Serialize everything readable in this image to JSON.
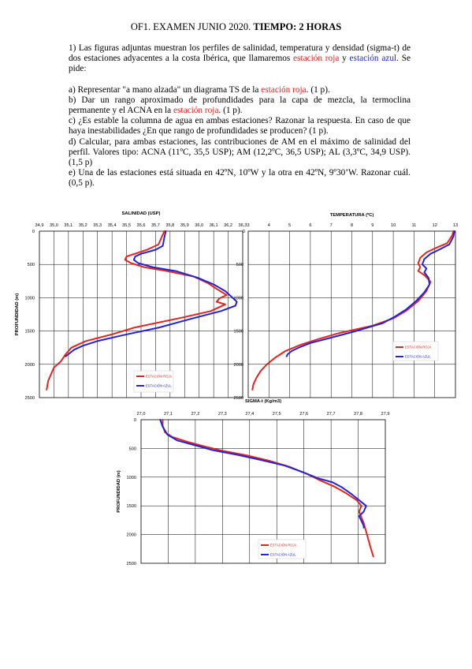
{
  "header": {
    "title_plain": "OF1. EXAMEN JUNIO 2020. ",
    "title_bold": "TIEMPO: 2 HORAS"
  },
  "problem": {
    "intro_a": "1) Las figuras adjuntas muestran los perfiles de salinidad, temperatura y densidad (sigma-t) de dos estaciones adyacentes a la costa Ibérica, que llamaremos ",
    "intro_red": "estación roja",
    "intro_b": " y ",
    "intro_blue": "estación azul",
    "intro_c": ". Se pide:",
    "a_pre": "a) Representar \"a mano alzada\" un diagrama TS de la ",
    "a_red": "estación roja",
    "a_post": ". (1 p).",
    "b_pre": "b) Dar un rango aproximado de profundidades para la capa de mezcla, la termoclina permanente y el ACNA en la ",
    "b_red": "estación roja",
    "b_post": ". (1 p).",
    "c": "c) ¿Es estable la columna de agua en ambas estaciones? Razonar la respuesta. En caso de que haya inestabilidades ¿En que rango de profundidades se producen? (1 p).",
    "d": "d) Calcular, para ambas estaciones, las contribuciones de AM en el máximo de salinidad del perfil. Valores tipo: ACNA (11ºC, 35,5 USP); AM (12,2ºC, 36,5 USP); AL (3,3ºC, 34,9 USP). (1,5 p)",
    "e": "e) Una de las estaciones está situada en 42ºN, 10ºW y la otra en 42ºN, 9º30’W. Razonar cuál. (0,5 p)."
  },
  "colors": {
    "red_station": "#e8231f",
    "blue_station": "#2222dd",
    "grid": "#000000"
  },
  "chart_data": [
    {
      "type": "line",
      "title": "SALINIDAD (USP)",
      "ylabel": "PROFUNDIDAD (m)",
      "x_ticks": [
        "34,9",
        "35,0",
        "35,1",
        "35,2",
        "35,3",
        "35,4",
        "35,5",
        "35,6",
        "35,7",
        "35,8",
        "35,9",
        "36,0",
        "36,1",
        "36,2",
        "36,3"
      ],
      "xlim": [
        34.9,
        36.3
      ],
      "y_ticks": [
        "0",
        "500",
        "1000",
        "1500",
        "2000",
        "2500"
      ],
      "ylim": [
        0,
        2500
      ],
      "legend": {
        "position": "bottom-center",
        "entries": [
          "ESTACIÓN ROJA",
          "ESTACIÓN AZUL"
        ]
      },
      "series": [
        {
          "name": "ESTACIÓN ROJA",
          "color": "#e8231f",
          "points": [
            [
              35.76,
              0
            ],
            [
              35.74,
              100
            ],
            [
              35.72,
              200
            ],
            [
              35.64,
              280
            ],
            [
              35.57,
              330
            ],
            [
              35.5,
              380
            ],
            [
              35.49,
              430
            ],
            [
              35.53,
              480
            ],
            [
              35.62,
              540
            ],
            [
              35.78,
              600
            ],
            [
              35.96,
              680
            ],
            [
              36.06,
              780
            ],
            [
              36.13,
              880
            ],
            [
              36.19,
              960
            ],
            [
              36.14,
              1010
            ],
            [
              36.12,
              1060
            ],
            [
              36.18,
              1100
            ],
            [
              36.08,
              1200
            ],
            [
              35.88,
              1300
            ],
            [
              35.55,
              1450
            ],
            [
              35.4,
              1550
            ],
            [
              35.22,
              1650
            ],
            [
              35.12,
              1750
            ],
            [
              35.08,
              1850
            ],
            [
              35.05,
              1950
            ],
            [
              35.0,
              2050
            ],
            [
              34.98,
              2150
            ],
            [
              34.96,
              2250
            ],
            [
              34.95,
              2380
            ]
          ]
        },
        {
          "name": "ESTACIÓN AZUL",
          "color": "#2222dd",
          "points": [
            [
              35.77,
              0
            ],
            [
              35.76,
              100
            ],
            [
              35.75,
              220
            ],
            [
              35.7,
              280
            ],
            [
              35.6,
              340
            ],
            [
              35.56,
              380
            ],
            [
              35.55,
              430
            ],
            [
              35.58,
              480
            ],
            [
              35.68,
              540
            ],
            [
              35.84,
              600
            ],
            [
              35.99,
              700
            ],
            [
              36.1,
              800
            ],
            [
              36.18,
              900
            ],
            [
              36.23,
              1000
            ],
            [
              36.26,
              1060
            ],
            [
              36.25,
              1120
            ],
            [
              36.15,
              1200
            ],
            [
              35.92,
              1330
            ],
            [
              35.72,
              1450
            ],
            [
              35.48,
              1560
            ],
            [
              35.3,
              1650
            ],
            [
              35.2,
              1720
            ],
            [
              35.14,
              1780
            ],
            [
              35.11,
              1830
            ],
            [
              35.08,
              1880
            ]
          ]
        }
      ]
    },
    {
      "type": "line",
      "title": "TEMPERATURA (ºC)",
      "x_ticks": [
        "3",
        "4",
        "5",
        "6",
        "7",
        "8",
        "9",
        "10",
        "11",
        "12",
        "13"
      ],
      "xlim": [
        3,
        13
      ],
      "y_ticks": [
        "0",
        "500",
        "1000",
        "1500",
        "2000",
        "2500"
      ],
      "ylim": [
        0,
        2500
      ],
      "legend": {
        "position": "bottom-right",
        "entries": [
          "ESTACIÓN ROJA",
          "ESTACIÓN AZUL"
        ]
      },
      "series": [
        {
          "name": "ESTACIÓN ROJA",
          "color": "#e8231f",
          "points": [
            [
              12.9,
              0
            ],
            [
              12.85,
              60
            ],
            [
              12.6,
              180
            ],
            [
              12.0,
              260
            ],
            [
              11.6,
              320
            ],
            [
              11.3,
              400
            ],
            [
              11.2,
              480
            ],
            [
              11.3,
              540
            ],
            [
              11.2,
              600
            ],
            [
              11.5,
              660
            ],
            [
              11.8,
              760
            ],
            [
              11.6,
              900
            ],
            [
              11.2,
              1050
            ],
            [
              10.6,
              1200
            ],
            [
              10.0,
              1310
            ],
            [
              9.0,
              1420
            ],
            [
              7.4,
              1530
            ],
            [
              6.4,
              1620
            ],
            [
              5.5,
              1710
            ],
            [
              4.8,
              1800
            ],
            [
              4.3,
              1900
            ],
            [
              3.9,
              2000
            ],
            [
              3.6,
              2100
            ],
            [
              3.4,
              2200
            ],
            [
              3.25,
              2300
            ],
            [
              3.2,
              2380
            ]
          ]
        },
        {
          "name": "ESTACIÓN AZUL",
          "color": "#2222dd",
          "points": [
            [
              12.95,
              0
            ],
            [
              12.9,
              80
            ],
            [
              12.7,
              200
            ],
            [
              12.2,
              280
            ],
            [
              11.8,
              340
            ],
            [
              11.5,
              420
            ],
            [
              11.4,
              500
            ],
            [
              11.6,
              560
            ],
            [
              11.5,
              620
            ],
            [
              11.7,
              700
            ],
            [
              11.75,
              800
            ],
            [
              11.5,
              920
            ],
            [
              11.1,
              1050
            ],
            [
              10.6,
              1180
            ],
            [
              10.1,
              1280
            ],
            [
              9.5,
              1380
            ],
            [
              8.2,
              1500
            ],
            [
              7.0,
              1600
            ],
            [
              6.0,
              1680
            ],
            [
              5.5,
              1740
            ],
            [
              5.1,
              1800
            ],
            [
              4.9,
              1850
            ],
            [
              4.85,
              1880
            ]
          ]
        }
      ]
    },
    {
      "type": "line",
      "title": "SIGMA-t (Kg/m3)",
      "ylabel": "PROFUNDIDAD (m)",
      "x_ticks": [
        "27,0",
        "27,1",
        "27,2",
        "27,3",
        "27,4",
        "27,5",
        "27,6",
        "27,7",
        "27,8",
        "27,9"
      ],
      "xlim": [
        26.94,
        27.96
      ],
      "y_ticks": [
        "0",
        "500",
        "1000",
        "1500",
        "2000",
        "2500"
      ],
      "ylim": [
        0,
        2500
      ],
      "legend": {
        "position": "bottom-left",
        "entries": [
          "ESTACIÓN ROJA",
          "ESTACIÓN AZUL"
        ]
      },
      "series": [
        {
          "name": "ESTACIÓN ROJA",
          "color": "#e8231f",
          "points": [
            [
              27.03,
              0
            ],
            [
              27.03,
              100
            ],
            [
              27.04,
              220
            ],
            [
              27.07,
              300
            ],
            [
              27.13,
              380
            ],
            [
              27.2,
              460
            ],
            [
              27.28,
              540
            ],
            [
              27.38,
              620
            ],
            [
              27.48,
              720
            ],
            [
              27.56,
              820
            ],
            [
              27.63,
              940
            ],
            [
              27.69,
              1060
            ],
            [
              27.75,
              1170
            ],
            [
              27.8,
              1290
            ],
            [
              27.84,
              1400
            ],
            [
              27.86,
              1500
            ],
            [
              27.85,
              1600
            ],
            [
              27.86,
              1700
            ],
            [
              27.87,
              1800
            ],
            [
              27.88,
              1950
            ],
            [
              27.89,
              2100
            ],
            [
              27.9,
              2250
            ],
            [
              27.91,
              2380
            ]
          ]
        },
        {
          "name": "ESTACIÓN AZUL",
          "color": "#2222dd",
          "points": [
            [
              27.02,
              0
            ],
            [
              27.03,
              120
            ],
            [
              27.05,
              260
            ],
            [
              27.09,
              360
            ],
            [
              27.16,
              440
            ],
            [
              27.24,
              530
            ],
            [
              27.34,
              610
            ],
            [
              27.44,
              700
            ],
            [
              27.54,
              800
            ],
            [
              27.62,
              920
            ],
            [
              27.68,
              1020
            ],
            [
              27.74,
              1090
            ],
            [
              27.78,
              1180
            ],
            [
              27.82,
              1300
            ],
            [
              27.85,
              1400
            ],
            [
              27.88,
              1500
            ],
            [
              27.87,
              1600
            ],
            [
              27.85,
              1680
            ],
            [
              27.86,
              1760
            ],
            [
              27.87,
              1850
            ],
            [
              27.87,
              1880
            ]
          ]
        }
      ]
    }
  ]
}
